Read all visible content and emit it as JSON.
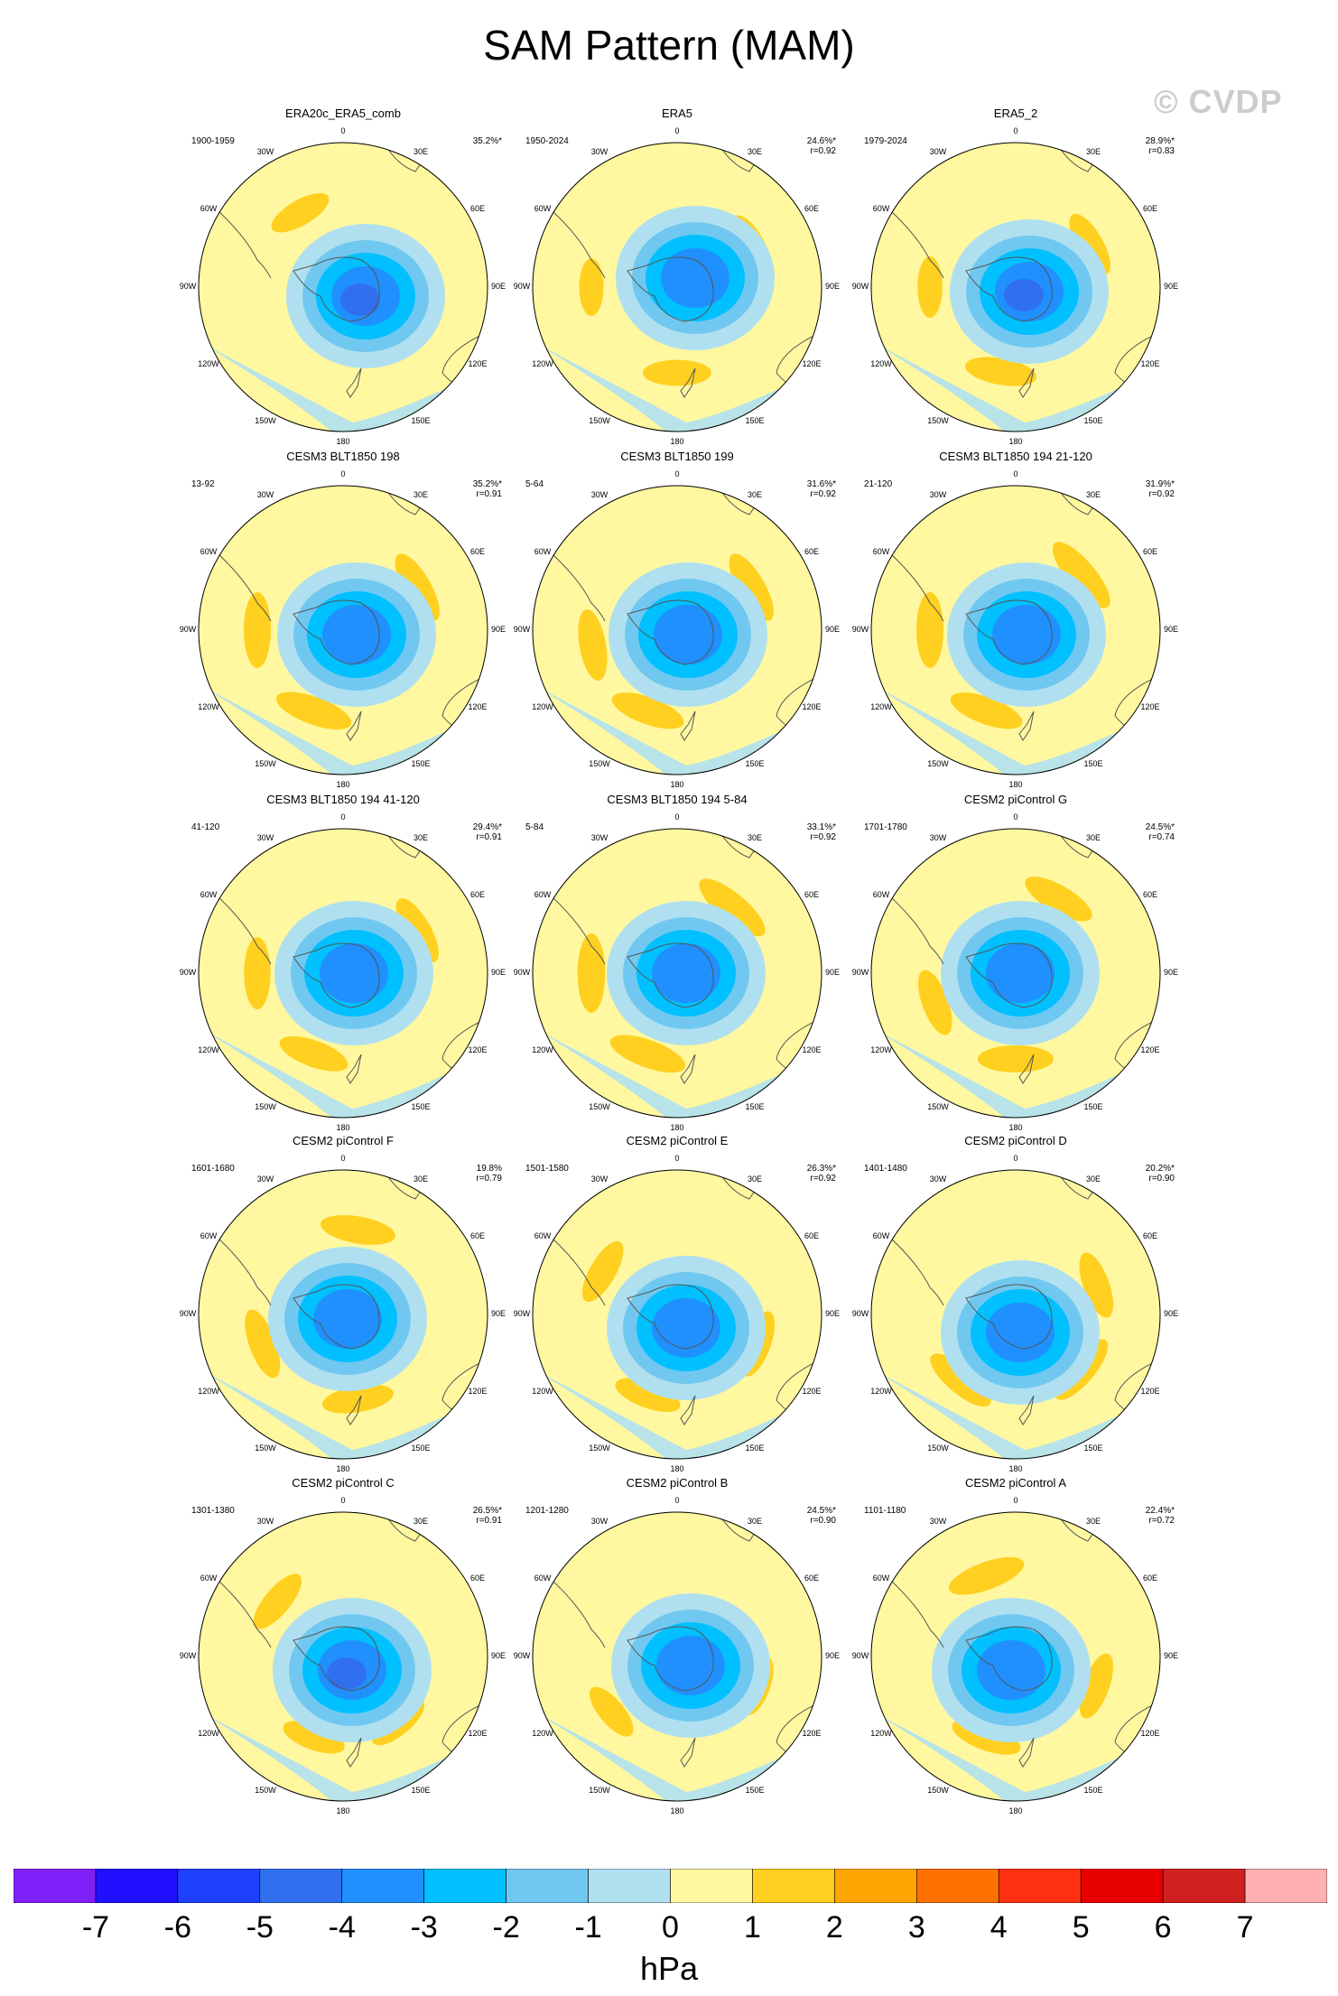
{
  "title": "SAM Pattern (MAM)",
  "watermark": "© CVDP",
  "units": "hPa",
  "colorbar": {
    "colors": [
      "#8020f8",
      "#2010ff",
      "#2040ff",
      "#3070ee",
      "#2090ff",
      "#00c0ff",
      "#70c8f0",
      "#b0e0f0",
      "#fff8a0",
      "#ffd020",
      "#ffa500",
      "#ff7000",
      "#ff3010",
      "#e80000",
      "#d02020",
      "#ffb0b0"
    ],
    "tick_labels": [
      "-7",
      "-6",
      "-5",
      "-4",
      "-3",
      "-2",
      "-1",
      "0",
      "1",
      "2",
      "3",
      "4",
      "5",
      "6",
      "7"
    ]
  },
  "chart_data": {
    "type": "heatmap",
    "title": "SAM Pattern (MAM)",
    "units": "hPa",
    "levels": [
      -7,
      -6,
      -5,
      -4,
      -3,
      -2,
      -1,
      0,
      1,
      2,
      3,
      4,
      5,
      6,
      7
    ],
    "projection": "south polar stereographic",
    "lon_labels": [
      "0",
      "30E",
      "60E",
      "90E",
      "120E",
      "150E",
      "180",
      "150W",
      "120W",
      "90W",
      "60W",
      "30W"
    ],
    "panels": [
      {
        "title": "ERA20c_ERA5_comb",
        "period": "1900-1959",
        "variance": "35.2%*",
        "r": ""
      },
      {
        "title": "ERA5",
        "period": "1950-2024",
        "variance": "24.6%*",
        "r": "r=0.92"
      },
      {
        "title": "ERA5_2",
        "period": "1979-2024",
        "variance": "28.9%*",
        "r": "r=0.83"
      },
      {
        "title": "CESM3 BLT1850 198",
        "period": "13-92",
        "variance": "35.2%*",
        "r": "r=0.91"
      },
      {
        "title": "CESM3 BLT1850 199",
        "period": "5-64",
        "variance": "31.6%*",
        "r": "r=0.92"
      },
      {
        "title": "CESM3 BLT1850 194 21-120",
        "period": "21-120",
        "variance": "31.9%*",
        "r": "r=0.92"
      },
      {
        "title": "CESM3 BLT1850 194 41-120",
        "period": "41-120",
        "variance": "29.4%*",
        "r": "r=0.91"
      },
      {
        "title": "CESM3 BLT1850 194 5-84",
        "period": "5-84",
        "variance": "33.1%*",
        "r": "r=0.92"
      },
      {
        "title": "CESM2 piControl G",
        "period": "1701-1780",
        "variance": "24.5%*",
        "r": "r=0.74"
      },
      {
        "title": "CESM2 piControl F",
        "period": "1601-1680",
        "variance": "19.8%",
        "r": "r=0.79"
      },
      {
        "title": "CESM2 piControl E",
        "period": "1501-1580",
        "variance": "26.3%*",
        "r": "r=0.92"
      },
      {
        "title": "CESM2 piControl D",
        "period": "1401-1480",
        "variance": "20.2%*",
        "r": "r=0.90"
      },
      {
        "title": "CESM2 piControl C",
        "period": "1301-1380",
        "variance": "26.5%*",
        "r": "r=0.91"
      },
      {
        "title": "CESM2 piControl B",
        "period": "1201-1280",
        "variance": "24.5%*",
        "r": "r=0.90"
      },
      {
        "title": "CESM2 piControl A",
        "period": "1101-1180",
        "variance": "22.4%*",
        "r": "r=0.72"
      }
    ]
  }
}
